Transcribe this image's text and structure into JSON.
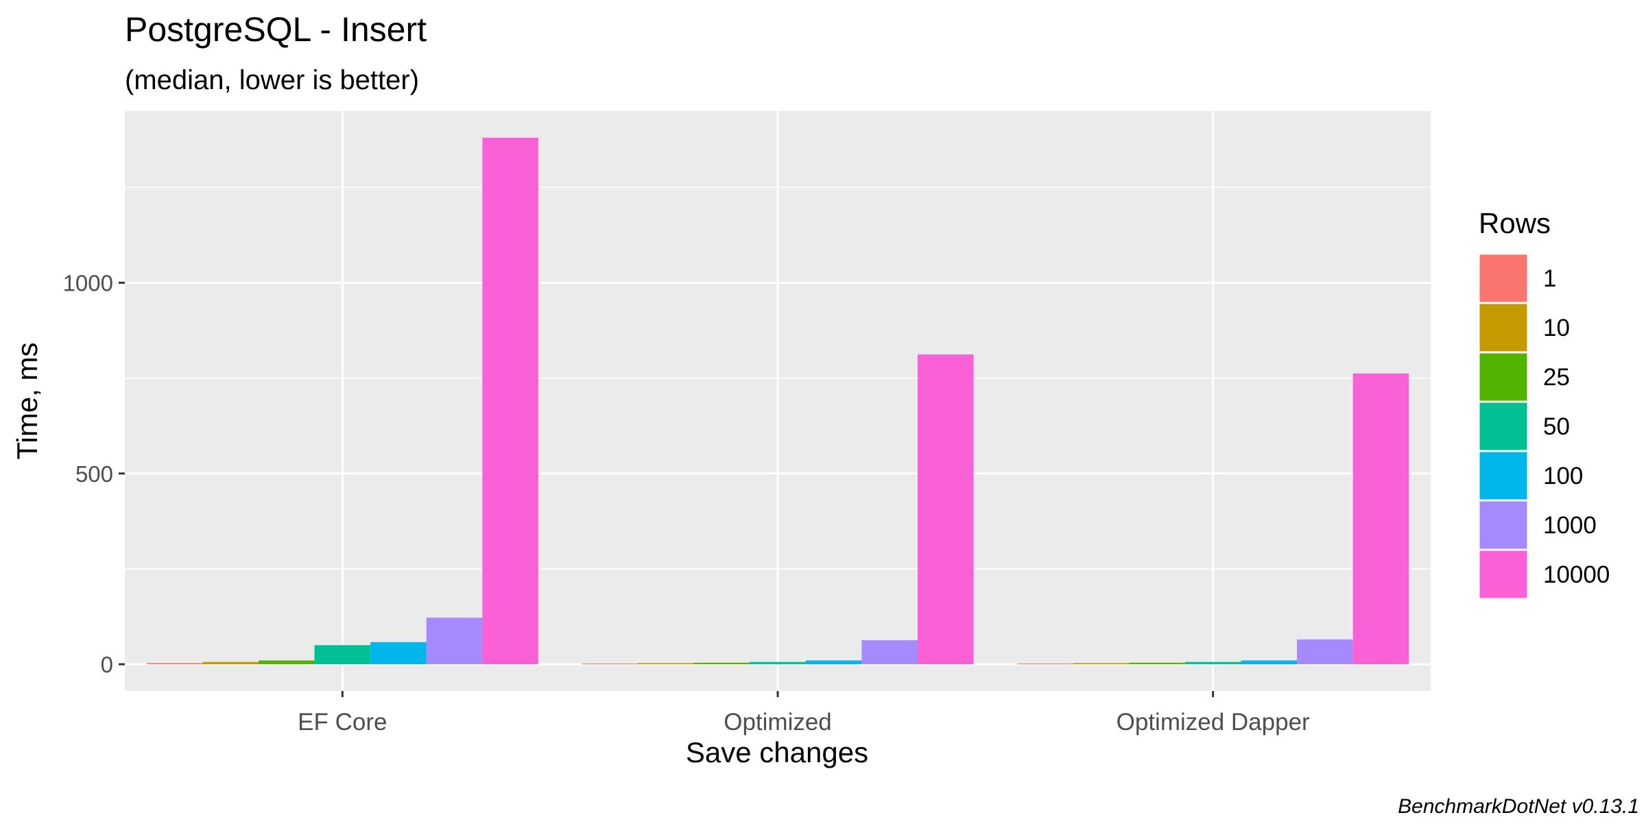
{
  "chart_data": {
    "type": "bar",
    "title": "PostgreSQL - Insert",
    "subtitle": "(median, lower is better)",
    "xlabel": "Save changes",
    "ylabel": "Time, ms",
    "caption": "BenchmarkDotNet v0.13.1",
    "categories": [
      "EF Core",
      "Optimized",
      "Optimized Dapper"
    ],
    "ylim": [
      -70,
      1450
    ],
    "y_ticks": [
      0,
      500,
      1000
    ],
    "y_tick_labels": [
      "0",
      "500",
      "1000"
    ],
    "grid": true,
    "legend": {
      "title": "Rows",
      "position": "right"
    },
    "series": [
      {
        "name": "1",
        "color": "#F8766D",
        "values": [
          3,
          2,
          2
        ]
      },
      {
        "name": "10",
        "color": "#C49A00",
        "values": [
          6,
          3,
          3
        ]
      },
      {
        "name": "25",
        "color": "#53B400",
        "values": [
          10,
          4,
          4
        ]
      },
      {
        "name": "50",
        "color": "#00C094",
        "values": [
          50,
          6,
          6
        ]
      },
      {
        "name": "100",
        "color": "#00B6EB",
        "values": [
          58,
          10,
          10
        ]
      },
      {
        "name": "1000",
        "color": "#A58AFF",
        "values": [
          122,
          63,
          65
        ]
      },
      {
        "name": "10000",
        "color": "#FB61D7",
        "values": [
          1380,
          812,
          762
        ]
      }
    ]
  }
}
